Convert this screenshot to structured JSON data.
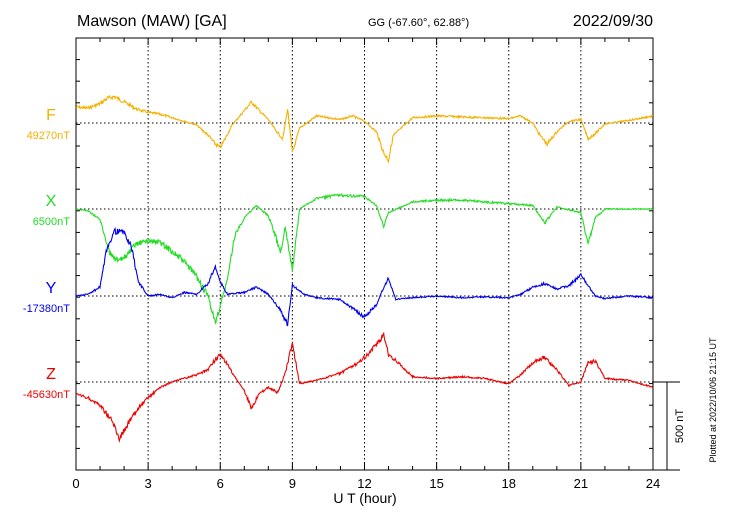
{
  "header": {
    "station": "Mawson (MAW)  [GA]",
    "coords": "GG (-67.60°,  62.88°)",
    "date": "2022/09/30"
  },
  "footer": {
    "plotted": "Plotted at 2022/10/06 21:15 UT"
  },
  "chart_data": {
    "type": "line",
    "xlabel": "U T (hour)",
    "xlim": [
      0,
      24
    ],
    "xticks": [
      "0",
      "3",
      "6",
      "9",
      "12",
      "15",
      "18",
      "21",
      "24"
    ],
    "scale_bar": {
      "label": "500 nT",
      "value": 500
    },
    "grid": true,
    "series": [
      {
        "name": "F",
        "baseline_label": "49270nT",
        "baseline": 49270,
        "color": "#f5b000",
        "points": [
          [
            0,
            49360
          ],
          [
            0.5,
            49355
          ],
          [
            1.0,
            49380
          ],
          [
            1.3,
            49410
          ],
          [
            1.6,
            49420
          ],
          [
            2.0,
            49390
          ],
          [
            2.5,
            49350
          ],
          [
            3.0,
            49330
          ],
          [
            3.5,
            49320
          ],
          [
            4.0,
            49300
          ],
          [
            4.5,
            49280
          ],
          [
            5.0,
            49260
          ],
          [
            5.5,
            49200
          ],
          [
            5.8,
            49150
          ],
          [
            6.0,
            49130
          ],
          [
            6.2,
            49180
          ],
          [
            6.5,
            49260
          ],
          [
            7.0,
            49340
          ],
          [
            7.3,
            49390
          ],
          [
            7.7,
            49330
          ],
          [
            8.0,
            49290
          ],
          [
            8.3,
            49230
          ],
          [
            8.6,
            49180
          ],
          [
            8.8,
            49350
          ],
          [
            9.0,
            49100
          ],
          [
            9.3,
            49240
          ],
          [
            10.0,
            49310
          ],
          [
            11.0,
            49290
          ],
          [
            11.5,
            49310
          ],
          [
            12.0,
            49280
          ],
          [
            12.5,
            49220
          ],
          [
            12.8,
            49100
          ],
          [
            13.0,
            49060
          ],
          [
            13.2,
            49200
          ],
          [
            14.0,
            49300
          ],
          [
            15.0,
            49310
          ],
          [
            16.0,
            49305
          ],
          [
            17.0,
            49300
          ],
          [
            18.0,
            49295
          ],
          [
            18.5,
            49310
          ],
          [
            19.0,
            49270
          ],
          [
            19.3,
            49200
          ],
          [
            19.6,
            49150
          ],
          [
            20.0,
            49220
          ],
          [
            20.5,
            49280
          ],
          [
            21.0,
            49290
          ],
          [
            21.3,
            49180
          ],
          [
            21.6,
            49210
          ],
          [
            22.0,
            49265
          ],
          [
            23.0,
            49285
          ],
          [
            24.0,
            49310
          ]
        ]
      },
      {
        "name": "X",
        "baseline_label": "6500nT",
        "baseline": 6500,
        "color": "#22dd22",
        "points": [
          [
            0,
            6500
          ],
          [
            0.5,
            6490
          ],
          [
            1.0,
            6440
          ],
          [
            1.4,
            6250
          ],
          [
            1.8,
            6200
          ],
          [
            2.2,
            6250
          ],
          [
            2.5,
            6300
          ],
          [
            3.0,
            6320
          ],
          [
            3.5,
            6310
          ],
          [
            4.0,
            6260
          ],
          [
            4.5,
            6200
          ],
          [
            5.0,
            6120
          ],
          [
            5.5,
            6000
          ],
          [
            5.8,
            5850
          ],
          [
            6.0,
            5950
          ],
          [
            6.3,
            6100
          ],
          [
            6.6,
            6350
          ],
          [
            7.0,
            6450
          ],
          [
            7.5,
            6520
          ],
          [
            8.0,
            6460
          ],
          [
            8.3,
            6350
          ],
          [
            8.5,
            6250
          ],
          [
            8.7,
            6400
          ],
          [
            9.0,
            6150
          ],
          [
            9.3,
            6500
          ],
          [
            10.0,
            6560
          ],
          [
            11.0,
            6580
          ],
          [
            12.0,
            6570
          ],
          [
            12.5,
            6520
          ],
          [
            12.8,
            6400
          ],
          [
            13.0,
            6480
          ],
          [
            14.0,
            6540
          ],
          [
            15.0,
            6550
          ],
          [
            16.0,
            6550
          ],
          [
            17.0,
            6540
          ],
          [
            18.0,
            6530
          ],
          [
            19.0,
            6520
          ],
          [
            19.5,
            6420
          ],
          [
            20.0,
            6510
          ],
          [
            21.0,
            6480
          ],
          [
            21.3,
            6300
          ],
          [
            21.6,
            6450
          ],
          [
            22.0,
            6500
          ],
          [
            23.0,
            6500
          ],
          [
            24.0,
            6500
          ]
        ]
      },
      {
        "name": "Y",
        "baseline_label": "-17380nT",
        "baseline": -17380,
        "color": "#0000ee",
        "points": [
          [
            0,
            -17380
          ],
          [
            0.5,
            -17370
          ],
          [
            1.0,
            -17330
          ],
          [
            1.3,
            -17100
          ],
          [
            1.6,
            -17010
          ],
          [
            2.0,
            -17020
          ],
          [
            2.3,
            -17100
          ],
          [
            2.6,
            -17300
          ],
          [
            3.0,
            -17380
          ],
          [
            3.5,
            -17370
          ],
          [
            4.0,
            -17390
          ],
          [
            4.5,
            -17360
          ],
          [
            5.0,
            -17370
          ],
          [
            5.5,
            -17310
          ],
          [
            5.8,
            -17210
          ],
          [
            6.0,
            -17300
          ],
          [
            6.3,
            -17370
          ],
          [
            7.0,
            -17360
          ],
          [
            7.5,
            -17330
          ],
          [
            8.0,
            -17370
          ],
          [
            8.5,
            -17460
          ],
          [
            8.8,
            -17540
          ],
          [
            9.0,
            -17320
          ],
          [
            9.5,
            -17370
          ],
          [
            10.0,
            -17390
          ],
          [
            11.0,
            -17400
          ],
          [
            11.5,
            -17450
          ],
          [
            12.0,
            -17500
          ],
          [
            12.5,
            -17430
          ],
          [
            12.8,
            -17330
          ],
          [
            13.0,
            -17280
          ],
          [
            13.3,
            -17400
          ],
          [
            14.0,
            -17390
          ],
          [
            15.0,
            -17380
          ],
          [
            16.0,
            -17390
          ],
          [
            17.0,
            -17385
          ],
          [
            18.0,
            -17390
          ],
          [
            18.5,
            -17370
          ],
          [
            19.0,
            -17330
          ],
          [
            19.5,
            -17310
          ],
          [
            20.0,
            -17340
          ],
          [
            20.5,
            -17320
          ],
          [
            21.0,
            -17260
          ],
          [
            21.3,
            -17320
          ],
          [
            21.6,
            -17380
          ],
          [
            22.0,
            -17395
          ],
          [
            23.0,
            -17380
          ],
          [
            24.0,
            -17390
          ]
        ]
      },
      {
        "name": "Z",
        "baseline_label": "-45630nT",
        "baseline": -45630,
        "color": "#ee0000",
        "points": [
          [
            0,
            -45700
          ],
          [
            0.5,
            -45720
          ],
          [
            1.0,
            -45760
          ],
          [
            1.5,
            -45850
          ],
          [
            1.8,
            -45950
          ],
          [
            2.2,
            -45860
          ],
          [
            2.6,
            -45780
          ],
          [
            3.0,
            -45720
          ],
          [
            3.5,
            -45660
          ],
          [
            4.0,
            -45630
          ],
          [
            4.5,
            -45610
          ],
          [
            5.0,
            -45590
          ],
          [
            5.5,
            -45560
          ],
          [
            5.8,
            -45500
          ],
          [
            6.0,
            -45480
          ],
          [
            6.3,
            -45530
          ],
          [
            6.6,
            -45600
          ],
          [
            7.0,
            -45680
          ],
          [
            7.3,
            -45780
          ],
          [
            7.6,
            -45700
          ],
          [
            8.0,
            -45660
          ],
          [
            8.4,
            -45690
          ],
          [
            8.7,
            -45580
          ],
          [
            9.0,
            -45410
          ],
          [
            9.3,
            -45640
          ],
          [
            10.0,
            -45620
          ],
          [
            11.0,
            -45580
          ],
          [
            11.5,
            -45540
          ],
          [
            12.0,
            -45490
          ],
          [
            12.5,
            -45420
          ],
          [
            12.8,
            -45360
          ],
          [
            13.0,
            -45470
          ],
          [
            14.0,
            -45600
          ],
          [
            15.0,
            -45610
          ],
          [
            16.0,
            -45600
          ],
          [
            17.0,
            -45610
          ],
          [
            18.0,
            -45640
          ],
          [
            18.5,
            -45590
          ],
          [
            19.0,
            -45520
          ],
          [
            19.5,
            -45490
          ],
          [
            20.0,
            -45560
          ],
          [
            20.5,
            -45650
          ],
          [
            21.0,
            -45630
          ],
          [
            21.3,
            -45520
          ],
          [
            21.6,
            -45510
          ],
          [
            22.0,
            -45610
          ],
          [
            23.0,
            -45620
          ],
          [
            24.0,
            -45660
          ]
        ]
      }
    ]
  }
}
